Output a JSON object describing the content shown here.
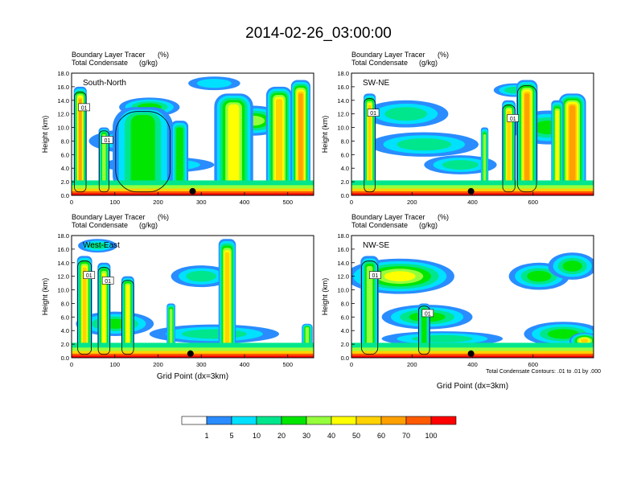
{
  "chart_data": {
    "type": "heatmap",
    "title": "2014-02-26_03:00:00",
    "panel_header": {
      "line1": "Boundary Layer Tracer",
      "unit1": "(%)",
      "line2": "Total Condensate",
      "unit2": "(g/kg)"
    },
    "ylabel": "Height (km)",
    "xlabel": "Grid Point (dx=3km)",
    "ylim": [
      0,
      18
    ],
    "yticks": [
      "0.0",
      "2.0",
      "4.0",
      "6.0",
      "8.0",
      "10.0",
      "12.0",
      "14.0",
      "16.0",
      "18.0"
    ],
    "contour_note": "Total Condensate Contours: .01 to .01 by .000",
    "contour_label": "01",
    "colorbar": {
      "levels": [
        "1",
        "5",
        "10",
        "20",
        "30",
        "40",
        "50",
        "60",
        "70",
        "100"
      ],
      "colors": [
        "#ffffff",
        "#2a8cff",
        "#00e0ff",
        "#00e68c",
        "#00e600",
        "#96ff3c",
        "#ffff00",
        "#ffd200",
        "#ffa000",
        "#ff5a00",
        "#ff0000"
      ]
    },
    "panels": [
      {
        "name": "South-North",
        "xlim": [
          0,
          560
        ],
        "xticks": [
          "0",
          "100",
          "200",
          "300",
          "400",
          "500"
        ],
        "xtick_values": [
          0,
          100,
          200,
          300,
          400,
          500
        ],
        "marker_x": 280,
        "plumes": [
          {
            "x": 20,
            "w": 30,
            "top": 16,
            "level": 8
          },
          {
            "x": 75,
            "w": 25,
            "top": 10,
            "level": 5
          },
          {
            "x": 165,
            "w": 140,
            "top": 13,
            "level": 4
          },
          {
            "x": 250,
            "w": 40,
            "top": 11,
            "level": 4
          },
          {
            "x": 375,
            "w": 90,
            "top": 15,
            "level": 6
          },
          {
            "x": 530,
            "w": 45,
            "top": 17,
            "level": 8
          },
          {
            "x": 480,
            "w": 60,
            "top": 16,
            "level": 7
          }
        ],
        "clouds": [
          {
            "x": 180,
            "y": 13,
            "rx": 70,
            "ry": 1.4,
            "level": 4
          },
          {
            "x": 150,
            "y": 8,
            "rx": 110,
            "ry": 1.8,
            "level": 3
          },
          {
            "x": 200,
            "y": 4.5,
            "rx": 130,
            "ry": 1.2,
            "level": 3
          },
          {
            "x": 330,
            "y": 16.5,
            "rx": 60,
            "ry": 1.0,
            "level": 2
          },
          {
            "x": 420,
            "y": 11,
            "rx": 80,
            "ry": 2.2,
            "level": 5
          }
        ]
      },
      {
        "name": "SW-NE",
        "xlim": [
          0,
          800
        ],
        "xticks": [
          "0",
          "200",
          "400",
          "600"
        ],
        "xtick_values": [
          0,
          200,
          400,
          600
        ],
        "marker_x": 395,
        "plumes": [
          {
            "x": 60,
            "w": 40,
            "top": 15,
            "level": 7
          },
          {
            "x": 520,
            "w": 45,
            "top": 14,
            "level": 7
          },
          {
            "x": 580,
            "w": 70,
            "top": 17,
            "level": 8
          },
          {
            "x": 730,
            "w": 90,
            "top": 15,
            "level": 8
          },
          {
            "x": 680,
            "w": 40,
            "top": 14,
            "level": 6
          },
          {
            "x": 440,
            "w": 25,
            "top": 10,
            "level": 5
          }
        ],
        "clouds": [
          {
            "x": 180,
            "y": 12,
            "rx": 140,
            "ry": 2.0,
            "level": 3
          },
          {
            "x": 240,
            "y": 7.5,
            "rx": 180,
            "ry": 1.8,
            "level": 3
          },
          {
            "x": 360,
            "y": 4.5,
            "rx": 120,
            "ry": 1.4,
            "level": 3
          },
          {
            "x": 650,
            "y": 10,
            "rx": 120,
            "ry": 2.5,
            "level": 4
          },
          {
            "x": 540,
            "y": 15.5,
            "rx": 70,
            "ry": 1.0,
            "level": 3
          }
        ]
      },
      {
        "name": "West-East",
        "xlim": [
          0,
          560
        ],
        "xticks": [
          "0",
          "100",
          "200",
          "300",
          "400",
          "500"
        ],
        "xtick_values": [
          0,
          100,
          200,
          300,
          400,
          500
        ],
        "marker_x": 275,
        "plumes": [
          {
            "x": 30,
            "w": 35,
            "top": 15,
            "level": 7
          },
          {
            "x": 75,
            "w": 30,
            "top": 14,
            "level": 6
          },
          {
            "x": 130,
            "w": 30,
            "top": 12,
            "level": 6
          },
          {
            "x": 230,
            "w": 20,
            "top": 8,
            "level": 5
          },
          {
            "x": 360,
            "w": 40,
            "top": 17.5,
            "level": 7
          },
          {
            "x": 545,
            "w": 25,
            "top": 5,
            "level": 5
          }
        ],
        "clouds": [
          {
            "x": 60,
            "y": 16.5,
            "rx": 45,
            "ry": 1.0,
            "level": 3
          },
          {
            "x": 300,
            "y": 12,
            "rx": 70,
            "ry": 1.6,
            "level": 3
          },
          {
            "x": 330,
            "y": 3.5,
            "rx": 150,
            "ry": 1.4,
            "level": 3
          },
          {
            "x": 100,
            "y": 5,
            "rx": 90,
            "ry": 1.8,
            "level": 4
          }
        ]
      },
      {
        "name": "NW-SE",
        "xlim": [
          0,
          800
        ],
        "xticks": [
          "0",
          "200",
          "400",
          "600"
        ],
        "xtick_values": [
          0,
          200,
          400,
          600
        ],
        "marker_x": 395,
        "plumes": [
          {
            "x": 60,
            "w": 60,
            "top": 15,
            "level": 5
          },
          {
            "x": 240,
            "w": 40,
            "top": 8,
            "level": 4
          }
        ],
        "clouds": [
          {
            "x": 160,
            "y": 12,
            "rx": 180,
            "ry": 2.6,
            "level": 6
          },
          {
            "x": 250,
            "y": 6,
            "rx": 150,
            "ry": 1.8,
            "level": 4
          },
          {
            "x": 300,
            "y": 2.8,
            "rx": 200,
            "ry": 1.1,
            "level": 3
          },
          {
            "x": 620,
            "y": 12,
            "rx": 100,
            "ry": 2.0,
            "level": 4
          },
          {
            "x": 730,
            "y": 13.5,
            "rx": 80,
            "ry": 2.0,
            "level": 4
          },
          {
            "x": 700,
            "y": 3.5,
            "rx": 130,
            "ry": 1.8,
            "level": 4
          },
          {
            "x": 770,
            "y": 2.5,
            "rx": 50,
            "ry": 1.2,
            "level": 7
          }
        ]
      }
    ]
  }
}
